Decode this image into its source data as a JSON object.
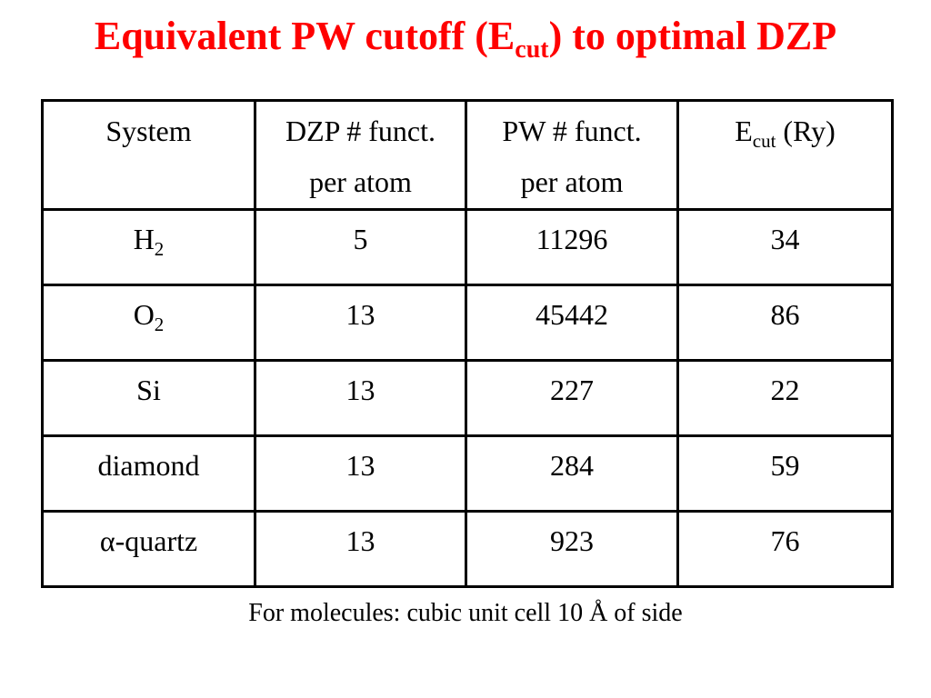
{
  "slide": {
    "title": {
      "before": "Equivalent PW cutoff (E",
      "sub": "cut",
      "after": ") to optimal DZP"
    },
    "table": {
      "headers": [
        {
          "line1": "System",
          "line2": ""
        },
        {
          "line1": "DZP # funct.",
          "line2": "per atom"
        },
        {
          "line1": "PW # funct.",
          "line2": "per atom"
        },
        {
          "main": "E",
          "sub": "cut",
          "rest": " (Ry)"
        }
      ],
      "rows": [
        {
          "system": "H",
          "system_sub": "2",
          "dzp": "5",
          "pw": "11296",
          "ecut": "34"
        },
        {
          "system": "O",
          "system_sub": "2",
          "dzp": "13",
          "pw": "45442",
          "ecut": "86"
        },
        {
          "system": "Si",
          "system_sub": "",
          "dzp": "13",
          "pw": "227",
          "ecut": "22"
        },
        {
          "system": "diamond",
          "system_sub": "",
          "dzp": "13",
          "pw": "284",
          "ecut": "59"
        },
        {
          "system": "α-quartz",
          "system_sub": "",
          "dzp": "13",
          "pw": "923",
          "ecut": "76"
        }
      ]
    },
    "footnote": "For molecules: cubic unit cell 10 Å of side"
  }
}
